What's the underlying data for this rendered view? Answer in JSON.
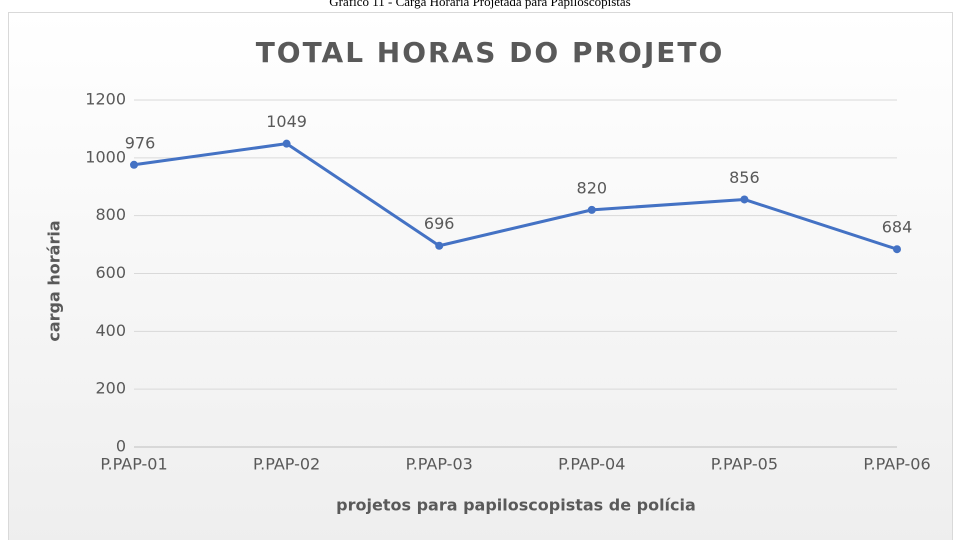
{
  "caption": "Gráfico 11 - Carga Horária Projetada para Papiloscopistas",
  "chart_data": {
    "type": "line",
    "title": "TOTAL HORAS DO PROJETO",
    "x_label": "projetos para papiloscopistas de polícia",
    "y_label": "carga horária",
    "categories": [
      "P.PAP-01",
      "P.PAP-02",
      "P.PAP-03",
      "P.PAP-04",
      "P.PAP-05",
      "P.PAP-06"
    ],
    "series": [
      {
        "name": "TOTAL HORAS DO PROJETO",
        "color": "#4472c4",
        "values": [
          976,
          1049,
          696,
          820,
          856,
          684
        ]
      }
    ],
    "ylim": [
      0,
      1200
    ],
    "yticks": [
      0,
      200,
      400,
      600,
      800,
      1000,
      1200
    ],
    "grid": true
  }
}
